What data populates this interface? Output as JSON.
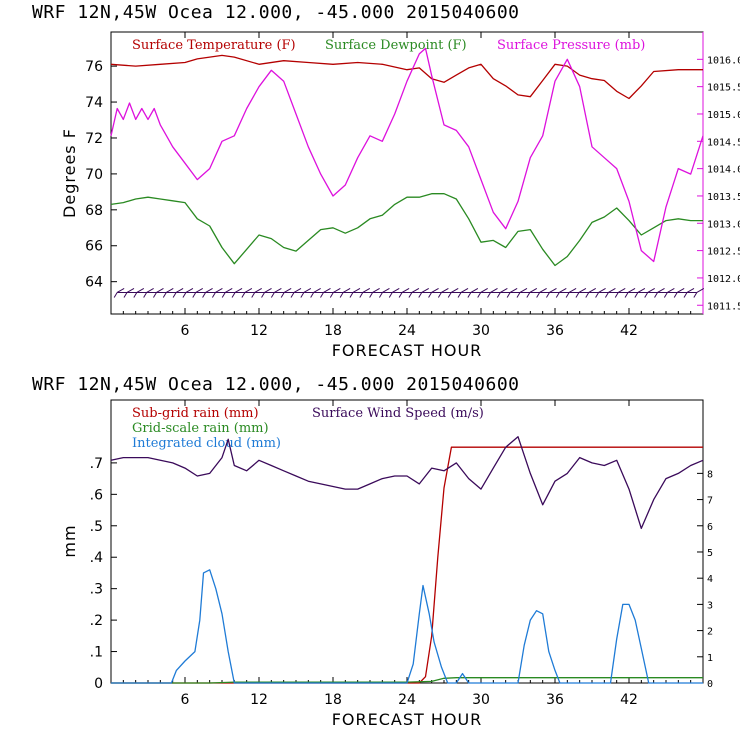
{
  "chart_data": [
    {
      "type": "line",
      "title": "WRF  12N,45W Ocea  12.000, -45.000  2015040600",
      "xlabel": "FORECAST HOUR",
      "ylabel": "Degrees F",
      "xlim": [
        0,
        48
      ],
      "ylim": [
        62.2,
        77.9
      ],
      "x_ticks": [
        6,
        12,
        18,
        24,
        30,
        36,
        42
      ],
      "y_ticks": [
        64,
        66,
        68,
        70,
        72,
        74,
        76
      ],
      "y2_ticks": [
        "1011.5",
        "1012.0",
        "1012.5",
        "1013.0",
        "1013.5",
        "1014.0",
        "1014.5",
        "1015.0",
        "1015.5",
        "1016.0"
      ],
      "y2lim": [
        1011.34,
        1016.5
      ],
      "series": [
        {
          "name": "Surface Temperature (F)",
          "color": "#b40000",
          "axis": "left",
          "x": [
            0,
            2,
            4,
            6,
            7,
            8,
            9,
            10,
            12,
            14,
            16,
            18,
            20,
            22,
            24,
            25,
            26,
            27,
            28,
            29,
            30,
            31,
            32,
            33,
            34,
            35,
            36,
            37,
            38,
            39,
            40,
            41,
            42,
            43,
            44,
            46,
            48
          ],
          "values": [
            76.1,
            76.0,
            76.1,
            76.2,
            76.4,
            76.5,
            76.6,
            76.5,
            76.1,
            76.3,
            76.2,
            76.1,
            76.2,
            76.1,
            75.8,
            75.9,
            75.3,
            75.1,
            75.5,
            75.9,
            76.1,
            75.3,
            74.9,
            74.4,
            74.3,
            75.2,
            76.1,
            76.0,
            75.5,
            75.3,
            75.2,
            74.6,
            74.2,
            74.9,
            75.7,
            75.8,
            75.8
          ]
        },
        {
          "name": "Surface Dewpoint (F)",
          "color": "#2a8a22",
          "axis": "left",
          "x": [
            0,
            1,
            2,
            3,
            4,
            5,
            6,
            7,
            8,
            9,
            10,
            11,
            12,
            13,
            14,
            15,
            16,
            17,
            18,
            19,
            20,
            21,
            22,
            23,
            24,
            25,
            26,
            27,
            28,
            29,
            30,
            31,
            32,
            33,
            34,
            35,
            36,
            37,
            38,
            39,
            40,
            41,
            42,
            43,
            44,
            45,
            46,
            47,
            48
          ],
          "values": [
            68.3,
            68.4,
            68.6,
            68.7,
            68.6,
            68.5,
            68.4,
            67.5,
            67.1,
            65.9,
            65.0,
            65.8,
            66.6,
            66.4,
            65.9,
            65.7,
            66.3,
            66.9,
            67.0,
            66.7,
            67.0,
            67.5,
            67.7,
            68.3,
            68.7,
            68.7,
            68.9,
            68.9,
            68.6,
            67.5,
            66.2,
            66.3,
            65.9,
            66.8,
            66.9,
            65.8,
            64.9,
            65.4,
            66.3,
            67.3,
            67.6,
            68.1,
            67.4,
            66.6,
            67.0,
            67.4,
            67.5,
            67.4,
            67.4
          ]
        },
        {
          "name": "Surface Pressure (mb)",
          "color": "#dd11dd",
          "axis": "right",
          "x": [
            0,
            0.5,
            1,
            1.5,
            2,
            2.5,
            3,
            3.5,
            4,
            4.5,
            5,
            6,
            7,
            8,
            9,
            10,
            11,
            12,
            13,
            14,
            15,
            16,
            17,
            18,
            19,
            20,
            21,
            22,
            23,
            24,
            25,
            25.5,
            26,
            27,
            28,
            29,
            30,
            31,
            32,
            33,
            34,
            35,
            36,
            37,
            38,
            39,
            40,
            41,
            42,
            43,
            44,
            45,
            46,
            47,
            48
          ],
          "values": [
            1014.6,
            1015.1,
            1014.9,
            1015.2,
            1014.9,
            1015.1,
            1014.9,
            1015.1,
            1014.8,
            1014.6,
            1014.4,
            1014.1,
            1013.8,
            1014.0,
            1014.5,
            1014.6,
            1015.1,
            1015.5,
            1015.8,
            1015.6,
            1015.0,
            1014.4,
            1013.9,
            1013.5,
            1013.7,
            1014.2,
            1014.6,
            1014.5,
            1015.0,
            1015.6,
            1016.1,
            1016.2,
            1015.7,
            1014.8,
            1014.7,
            1014.4,
            1013.8,
            1013.2,
            1012.9,
            1013.4,
            1014.2,
            1014.6,
            1015.6,
            1016.0,
            1015.5,
            1014.4,
            1014.2,
            1014.0,
            1013.4,
            1012.5,
            1012.3,
            1013.3,
            1014.0,
            1013.9,
            1014.6
          ]
        }
      ],
      "wind_barbs": {
        "name": "Wind barbs",
        "count": 60,
        "baseline_value": 63.4
      }
    },
    {
      "type": "line",
      "title": "WRF  12N,45W Ocea  12.000, -45.000  2015040600",
      "xlabel": "FORECAST HOUR",
      "ylabel": "mm",
      "xlim": [
        0,
        48
      ],
      "ylim": [
        0,
        0.9
      ],
      "x_ticks": [
        6,
        12,
        18,
        24,
        30,
        36,
        42
      ],
      "x_tick_labels": [
        "6",
        "12",
        "18",
        "24",
        "30",
        "36",
        "42"
      ],
      "y_ticks": [
        0,
        0.1,
        0.2,
        0.3,
        0.4,
        0.5,
        0.6,
        0.7
      ],
      "y_tick_labels": [
        "0",
        ".1",
        ".2",
        ".3",
        ".4",
        ".5",
        ".6",
        ".7"
      ],
      "y2_ticks": [
        0,
        1,
        2,
        3,
        4,
        5,
        6,
        7,
        8
      ],
      "y2lim": [
        0,
        10.8
      ],
      "series": [
        {
          "name": "Sub-grid rain (mm)",
          "color": "#b40000",
          "axis": "left",
          "x": [
            0,
            25,
            25.5,
            26,
            26.5,
            27,
            27.6,
            48
          ],
          "values": [
            0,
            0,
            0.02,
            0.15,
            0.4,
            0.62,
            0.75,
            0.75
          ]
        },
        {
          "name": "Grid-scale rain (mm)",
          "color": "#2a8a22",
          "axis": "left",
          "x": [
            0,
            8,
            10,
            24,
            26,
            27,
            28,
            48
          ],
          "values": [
            0,
            0,
            0.003,
            0.003,
            0.005,
            0.015,
            0.017,
            0.017
          ]
        },
        {
          "name": "Integrated cloud (mm)",
          "color": "#1f7bd6",
          "axis": "left",
          "x": [
            0,
            4.9,
            5.3,
            6,
            6.8,
            7.2,
            7.5,
            8,
            8.5,
            9,
            9.5,
            10,
            24,
            24.5,
            25,
            25.3,
            25.8,
            26.2,
            26.8,
            27.3,
            28,
            28.5,
            29,
            33,
            33.5,
            34,
            34.5,
            35,
            35.5,
            36,
            36.4,
            40.5,
            41,
            41.5,
            42,
            42.5,
            43,
            43.6,
            48
          ],
          "values": [
            0,
            0,
            0.04,
            0.07,
            0.1,
            0.2,
            0.35,
            0.36,
            0.3,
            0.22,
            0.1,
            0,
            0,
            0.06,
            0.22,
            0.31,
            0.22,
            0.13,
            0.05,
            0,
            0,
            0.03,
            0,
            0,
            0.12,
            0.2,
            0.23,
            0.22,
            0.1,
            0.04,
            0,
            0,
            0.14,
            0.25,
            0.25,
            0.2,
            0.11,
            0,
            0
          ]
        },
        {
          "name": "Surface Wind Speed (m/s)",
          "color": "#3a0a5a",
          "axis": "right",
          "x": [
            0,
            1,
            2,
            3,
            4,
            5,
            6,
            7,
            8,
            9,
            9.5,
            10,
            11,
            12,
            13,
            14,
            15,
            16,
            17,
            18,
            19,
            20,
            21,
            22,
            23,
            24,
            25,
            26,
            27,
            28,
            29,
            30,
            31,
            32,
            33,
            34,
            35,
            36,
            37,
            38,
            39,
            40,
            41,
            42,
            43,
            44,
            45,
            46,
            47,
            48
          ],
          "values": [
            8.5,
            8.6,
            8.6,
            8.6,
            8.5,
            8.4,
            8.2,
            7.9,
            8.0,
            8.6,
            9.3,
            8.3,
            8.1,
            8.5,
            8.3,
            8.1,
            7.9,
            7.7,
            7.6,
            7.5,
            7.4,
            7.4,
            7.6,
            7.8,
            7.9,
            7.9,
            7.6,
            8.2,
            8.1,
            8.4,
            7.8,
            7.4,
            8.2,
            9.0,
            9.4,
            8.0,
            6.8,
            7.7,
            8.0,
            8.6,
            8.4,
            8.3,
            8.5,
            7.4,
            5.9,
            7.0,
            7.8,
            8.0,
            8.3,
            8.5
          ]
        }
      ]
    }
  ]
}
